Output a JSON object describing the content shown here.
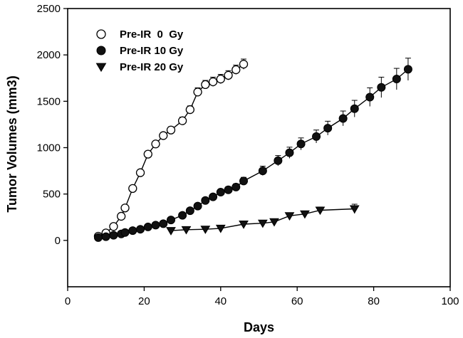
{
  "chart_data": {
    "type": "line",
    "title": "",
    "xlabel": "Days",
    "ylabel": "Tumor Volumes (mm3)",
    "xlim": [
      0,
      100
    ],
    "ylim": [
      -500,
      2500
    ],
    "x_ticks": [
      0,
      20,
      40,
      60,
      80,
      100
    ],
    "y_ticks": [
      0,
      500,
      1000,
      1500,
      2000,
      2500
    ],
    "grid": false,
    "legend_position": "top-left",
    "series": [
      {
        "name": "Pre-IR  0  Gy",
        "marker": "open-circle",
        "x": [
          8,
          10,
          12,
          14,
          15,
          17,
          19,
          21,
          23,
          25,
          27,
          30,
          32,
          34,
          36,
          38,
          40,
          42,
          44,
          46
        ],
        "y": [
          45,
          80,
          150,
          260,
          350,
          560,
          730,
          930,
          1040,
          1130,
          1190,
          1290,
          1410,
          1600,
          1680,
          1710,
          1740,
          1780,
          1840,
          1900
        ],
        "error": [
          10,
          10,
          15,
          15,
          20,
          25,
          25,
          30,
          30,
          30,
          35,
          40,
          40,
          45,
          45,
          50,
          50,
          50,
          50,
          55
        ]
      },
      {
        "name": "Pre-IR 10 Gy",
        "marker": "filled-circle",
        "x": [
          8,
          10,
          12,
          14,
          15,
          17,
          19,
          21,
          23,
          25,
          27,
          30,
          32,
          34,
          36,
          38,
          40,
          42,
          44,
          46,
          51,
          55,
          58,
          61,
          65,
          68,
          72,
          75,
          79,
          82,
          86,
          89
        ],
        "y": [
          30,
          40,
          55,
          70,
          85,
          105,
          120,
          145,
          165,
          180,
          220,
          270,
          320,
          370,
          430,
          470,
          520,
          545,
          575,
          640,
          750,
          860,
          945,
          1040,
          1120,
          1210,
          1315,
          1420,
          1545,
          1650,
          1740,
          1845
        ],
        "error": [
          5,
          5,
          8,
          8,
          10,
          10,
          10,
          12,
          12,
          15,
          15,
          20,
          20,
          25,
          25,
          30,
          30,
          35,
          35,
          40,
          50,
          55,
          60,
          65,
          70,
          75,
          80,
          90,
          100,
          110,
          115,
          120
        ]
      },
      {
        "name": "Pre-IR 20 Gy",
        "marker": "filled-triangle-down",
        "x": [
          27,
          31,
          36,
          40,
          46,
          51,
          54,
          58,
          62,
          66,
          75
        ],
        "y": [
          105,
          115,
          120,
          130,
          175,
          185,
          200,
          265,
          285,
          325,
          340
        ],
        "error": [
          10,
          10,
          10,
          12,
          15,
          15,
          20,
          25,
          25,
          35,
          50
        ]
      }
    ]
  }
}
